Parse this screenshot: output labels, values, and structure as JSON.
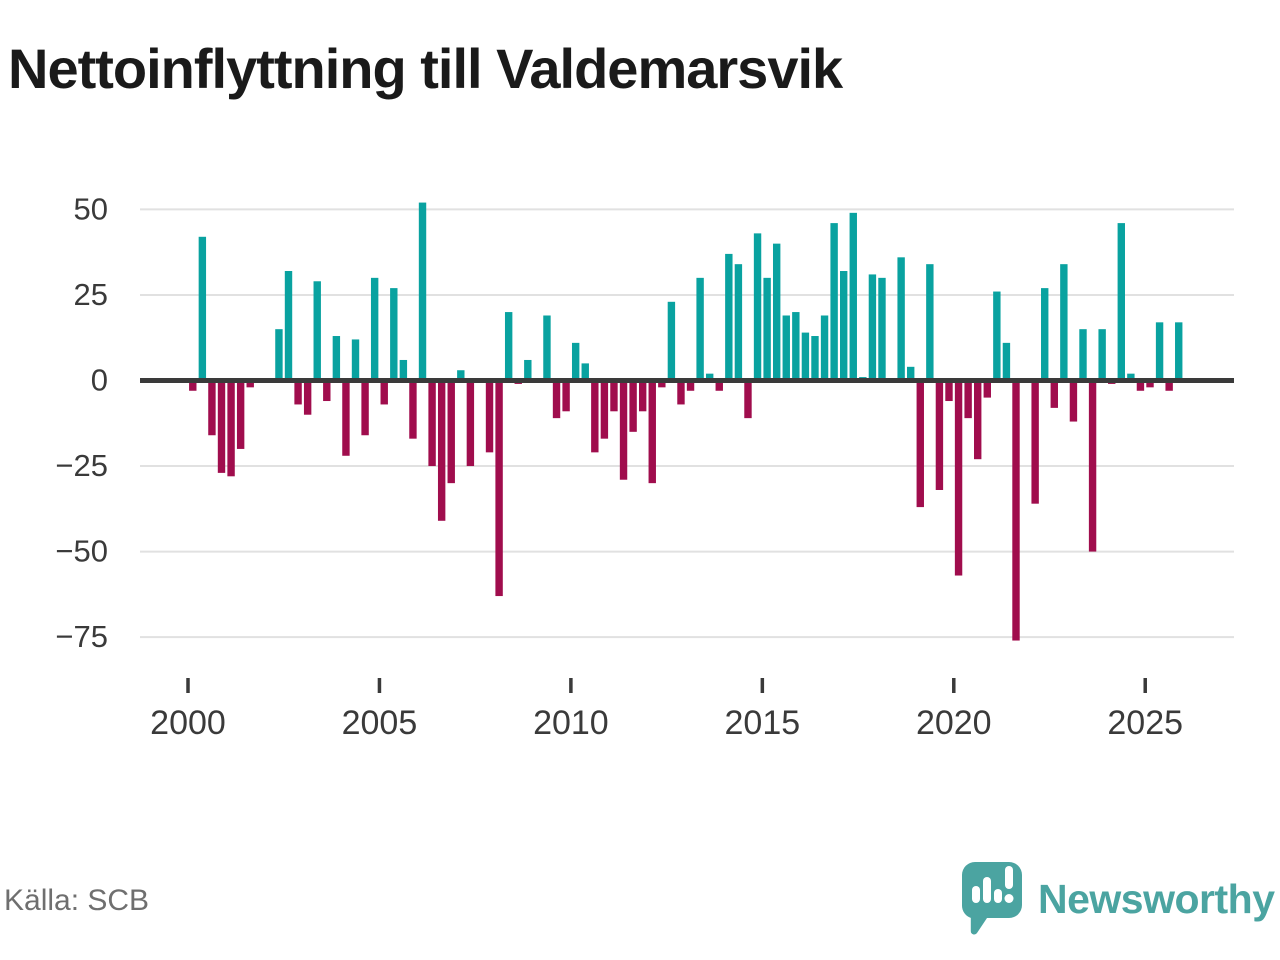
{
  "header": {
    "title": "Nettoinflyttning till Valdemarsvik"
  },
  "footer": {
    "source_label": "Källa: SCB",
    "brand": "Newsworthy"
  },
  "icons": {
    "brand_logo": "newsworthy-speech-bubble-barchart-icon"
  },
  "chart_data": {
    "type": "bar",
    "title": "Nettoinflyttning till Valdemarsvik",
    "period": "quarterly",
    "start": "2000 Q1",
    "end": "2025 Q4",
    "x_tick_years": [
      2000,
      2005,
      2010,
      2015,
      2020,
      2025
    ],
    "y_ticks": [
      50,
      25,
      0,
      -25,
      -50,
      -75
    ],
    "ylim": [
      -80,
      55
    ],
    "grid": "horizontal",
    "legend": "none",
    "positive_color": "#09A2A0",
    "negative_color": "#A00D4D",
    "zero_line_color": "#3a3a3a",
    "grid_color": "#e1e1e1",
    "tick_label_color": "#3a3a3a",
    "values": [
      -3,
      42,
      -16,
      -27,
      -28,
      -20,
      -2,
      0,
      0,
      15,
      32,
      -7,
      -10,
      29,
      -6,
      13,
      -22,
      12,
      -16,
      30,
      -7,
      27,
      6,
      -17,
      52,
      -25,
      -41,
      -30,
      3,
      -25,
      0,
      -21,
      -63,
      20,
      -1,
      6,
      0,
      19,
      -11,
      -9,
      11,
      5,
      -21,
      -17,
      -9,
      -29,
      -15,
      -9,
      -30,
      -2,
      23,
      -7,
      -3,
      30,
      2,
      -3,
      37,
      34,
      -11,
      43,
      30,
      40,
      19,
      20,
      14,
      13,
      19,
      46,
      32,
      49,
      1,
      31,
      30,
      0,
      36,
      4,
      -37,
      34,
      -32,
      -6,
      -57,
      -11,
      -23,
      -5,
      26,
      11,
      -76,
      0,
      -36,
      27,
      -8,
      34,
      -12,
      15,
      -50,
      15,
      -1,
      46,
      2,
      -3,
      -2,
      17,
      -3,
      17
    ],
    "source": "Källa: SCB"
  }
}
